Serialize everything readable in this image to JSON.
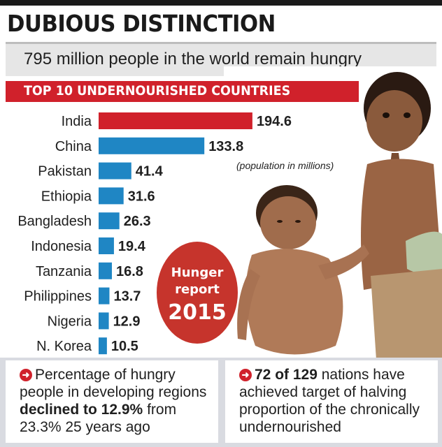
{
  "headline": "DUBIOUS DISTINCTION",
  "subhead": "795 million people in the world remain hungry",
  "colors": {
    "highlight": "#d0212b",
    "bar": "#1f86c4",
    "badge": "#c6342c"
  },
  "badge": {
    "line1": "Hunger",
    "line2": "report",
    "line3": "2015"
  },
  "facts": {
    "left": {
      "pre": "Percentage of hungry people in developing regions ",
      "bold": "declined to 12.9%",
      "post": " from 23.3% 25 years ago"
    },
    "right": {
      "bold": "72 of 129",
      "post": " nations have achieved target of halving proportion of the chronically undernourished"
    }
  },
  "chart_data": {
    "type": "bar",
    "orientation": "horizontal",
    "title": "TOP 10 UNDERNOURISHED COUNTRIES",
    "note": "(population in millions)",
    "categories": [
      "India",
      "China",
      "Pakistan",
      "Ethiopia",
      "Bangladesh",
      "Indonesia",
      "Tanzania",
      "Philippines",
      "Nigeria",
      "N. Korea"
    ],
    "values": [
      194.6,
      133.8,
      41.4,
      31.6,
      26.3,
      19.4,
      16.8,
      13.7,
      12.9,
      10.5
    ],
    "value_labels": [
      "194.6",
      "133.8",
      "41.4",
      "31.6",
      "26.3",
      "19.4",
      "16.8",
      "13.7",
      "12.9",
      "10.5"
    ],
    "highlight_index": 0,
    "grid": false
  }
}
